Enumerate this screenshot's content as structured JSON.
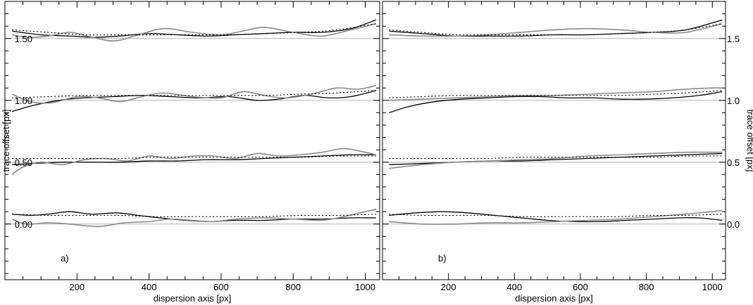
{
  "colors": {
    "black_curve": "#000000",
    "gray_curve": "#8a8a8a",
    "baseline": "#b4b4b4",
    "frame": "#000000"
  },
  "chart_data": [
    {
      "type": "line",
      "panel_label": "a)",
      "xlabel": "dispersion axis [px]",
      "ylabel": "trace offset [px]",
      "xlim": [
        0,
        1040
      ],
      "ylim": [
        -0.45,
        1.8
      ],
      "x_ticks": [
        200,
        400,
        600,
        800,
        1000
      ],
      "x_tick_labels": [
        "200",
        "400",
        "600",
        "800",
        "1000"
      ],
      "y_ticks": [
        0.0,
        0.5,
        1.0,
        1.5
      ],
      "y_tick_labels": [
        "0.00",
        "0.50",
        "1.00",
        "1.50"
      ],
      "y_axis_side": "left",
      "grid": false,
      "reference_lines": [
        0.0,
        0.5,
        1.0,
        1.5
      ],
      "series": [
        {
          "style": "black",
          "x": [
            20,
            100,
            180,
            250,
            320,
            400,
            480,
            560,
            640,
            720,
            800,
            880,
            960,
            1030
          ],
          "y": [
            1.56,
            1.53,
            1.52,
            1.51,
            1.52,
            1.54,
            1.53,
            1.52,
            1.53,
            1.54,
            1.55,
            1.55,
            1.58,
            1.65
          ]
        },
        {
          "style": "gray",
          "x": [
            20,
            60,
            120,
            180,
            230,
            300,
            360,
            440,
            520,
            600,
            660,
            720,
            800,
            880,
            960,
            1030
          ],
          "y": [
            1.53,
            1.51,
            1.52,
            1.55,
            1.52,
            1.48,
            1.52,
            1.58,
            1.55,
            1.53,
            1.56,
            1.59,
            1.55,
            1.52,
            1.57,
            1.62
          ]
        },
        {
          "style": "dotted",
          "x": [
            20,
            120,
            220,
            320,
            420,
            520,
            620,
            720,
            820,
            920,
            1030
          ],
          "y": [
            1.57,
            1.55,
            1.53,
            1.53,
            1.53,
            1.53,
            1.53,
            1.54,
            1.55,
            1.57,
            1.62
          ]
        },
        {
          "style": "black",
          "x": [
            20,
            80,
            150,
            220,
            300,
            380,
            460,
            540,
            620,
            700,
            760,
            830,
            900,
            960,
            1030
          ],
          "y": [
            0.91,
            0.96,
            1.0,
            1.02,
            1.03,
            1.04,
            1.03,
            1.02,
            1.03,
            1.0,
            1.01,
            1.04,
            1.02,
            1.03,
            1.08
          ]
        },
        {
          "style": "gray",
          "x": [
            20,
            70,
            130,
            200,
            260,
            320,
            380,
            440,
            520,
            600,
            660,
            720,
            780,
            850,
            920,
            980,
            1030
          ],
          "y": [
            1.05,
            0.99,
            0.98,
            1.03,
            1.02,
            0.99,
            1.03,
            1.06,
            1.03,
            1.02,
            1.07,
            1.04,
            1.02,
            1.05,
            1.1,
            1.09,
            1.12
          ]
        },
        {
          "style": "dotted",
          "x": [
            20,
            120,
            220,
            320,
            420,
            520,
            620,
            720,
            820,
            920,
            1030
          ],
          "y": [
            1.02,
            1.03,
            1.04,
            1.04,
            1.04,
            1.04,
            1.04,
            1.04,
            1.05,
            1.06,
            1.08
          ]
        },
        {
          "style": "black",
          "x": [
            20,
            80,
            160,
            240,
            320,
            400,
            480,
            560,
            640,
            720,
            800,
            880,
            960,
            1030
          ],
          "y": [
            0.48,
            0.49,
            0.5,
            0.5,
            0.5,
            0.51,
            0.51,
            0.52,
            0.52,
            0.53,
            0.54,
            0.55,
            0.56,
            0.56
          ]
        },
        {
          "style": "gray",
          "x": [
            20,
            50,
            100,
            160,
            220,
            280,
            340,
            400,
            460,
            520,
            580,
            640,
            700,
            760,
            820,
            880,
            940,
            1000,
            1030
          ],
          "y": [
            0.4,
            0.46,
            0.5,
            0.48,
            0.52,
            0.53,
            0.51,
            0.55,
            0.53,
            0.55,
            0.55,
            0.53,
            0.57,
            0.55,
            0.56,
            0.58,
            0.61,
            0.58,
            0.56
          ]
        },
        {
          "style": "dotted",
          "x": [
            20,
            120,
            220,
            320,
            420,
            520,
            620,
            720,
            820,
            920,
            1030
          ],
          "y": [
            0.53,
            0.53,
            0.53,
            0.53,
            0.54,
            0.54,
            0.54,
            0.54,
            0.54,
            0.55,
            0.55
          ]
        },
        {
          "style": "black",
          "x": [
            20,
            70,
            120,
            180,
            240,
            310,
            370,
            430,
            500,
            570,
            640,
            720,
            800,
            880,
            960,
            1030
          ],
          "y": [
            0.08,
            0.07,
            0.08,
            0.1,
            0.08,
            0.09,
            0.07,
            0.05,
            0.03,
            0.02,
            0.03,
            0.03,
            0.04,
            0.04,
            0.05,
            0.05
          ]
        },
        {
          "style": "gray",
          "x": [
            20,
            60,
            120,
            180,
            260,
            330,
            400,
            460,
            520,
            580,
            640,
            720,
            800,
            880,
            940,
            1000,
            1030
          ],
          "y": [
            0.04,
            0.0,
            0.01,
            0.0,
            -0.02,
            0.01,
            0.02,
            0.04,
            0.03,
            0.02,
            0.04,
            0.05,
            0.04,
            0.03,
            0.06,
            0.1,
            0.12
          ]
        },
        {
          "style": "dotted",
          "x": [
            20,
            120,
            220,
            320,
            420,
            520,
            620,
            720,
            820,
            920,
            1030
          ],
          "y": [
            0.08,
            0.07,
            0.07,
            0.07,
            0.06,
            0.06,
            0.06,
            0.06,
            0.07,
            0.07,
            0.08
          ]
        }
      ]
    },
    {
      "type": "line",
      "panel_label": "b)",
      "xlabel": "dispersion axis [px]",
      "ylabel": "trace offset [px]",
      "xlim": [
        0,
        1040
      ],
      "ylim": [
        -0.45,
        1.8
      ],
      "x_ticks": [
        200,
        400,
        600,
        800,
        1000
      ],
      "x_tick_labels": [
        "200",
        "400",
        "600",
        "800",
        "1000"
      ],
      "y_ticks": [
        0.0,
        0.5,
        1.0,
        1.5
      ],
      "y_tick_labels": [
        "0.0",
        "0.5",
        "1.0",
        "1.5"
      ],
      "y_axis_side": "right",
      "grid": false,
      "reference_lines": [
        0.0,
        0.5,
        1.0,
        1.5
      ],
      "series": [
        {
          "style": "black",
          "x": [
            20,
            120,
            220,
            320,
            420,
            520,
            620,
            720,
            820,
            920,
            1030
          ],
          "y": [
            1.56,
            1.54,
            1.52,
            1.52,
            1.52,
            1.53,
            1.53,
            1.54,
            1.55,
            1.57,
            1.65
          ]
        },
        {
          "style": "gray",
          "x": [
            20,
            120,
            220,
            320,
            420,
            520,
            620,
            720,
            820,
            920,
            1030
          ],
          "y": [
            1.53,
            1.52,
            1.52,
            1.53,
            1.55,
            1.57,
            1.58,
            1.57,
            1.55,
            1.55,
            1.62
          ]
        },
        {
          "style": "dotted",
          "x": [
            20,
            120,
            220,
            320,
            420,
            520,
            620,
            720,
            820,
            920,
            1030
          ],
          "y": [
            1.57,
            1.55,
            1.53,
            1.53,
            1.53,
            1.53,
            1.53,
            1.54,
            1.55,
            1.57,
            1.62
          ]
        },
        {
          "style": "black",
          "x": [
            20,
            80,
            160,
            240,
            320,
            400,
            480,
            560,
            640,
            720,
            800,
            880,
            960,
            1030
          ],
          "y": [
            0.9,
            0.95,
            0.99,
            1.01,
            1.02,
            1.03,
            1.03,
            1.02,
            1.02,
            1.01,
            1.01,
            1.02,
            1.04,
            1.07
          ]
        },
        {
          "style": "gray",
          "x": [
            20,
            120,
            220,
            320,
            420,
            520,
            620,
            720,
            820,
            920,
            1000,
            1030
          ],
          "y": [
            1.0,
            1.01,
            1.02,
            1.03,
            1.04,
            1.04,
            1.05,
            1.06,
            1.07,
            1.09,
            1.1,
            1.1
          ]
        },
        {
          "style": "dotted",
          "x": [
            20,
            120,
            220,
            320,
            420,
            520,
            620,
            720,
            820,
            920,
            1030
          ],
          "y": [
            1.02,
            1.03,
            1.04,
            1.04,
            1.04,
            1.04,
            1.04,
            1.04,
            1.05,
            1.06,
            1.08
          ]
        },
        {
          "style": "black",
          "x": [
            20,
            120,
            220,
            320,
            420,
            520,
            620,
            720,
            820,
            920,
            1030
          ],
          "y": [
            0.48,
            0.49,
            0.5,
            0.51,
            0.51,
            0.52,
            0.53,
            0.54,
            0.55,
            0.56,
            0.57
          ]
        },
        {
          "style": "gray",
          "x": [
            20,
            120,
            220,
            320,
            420,
            520,
            620,
            720,
            820,
            920,
            1030
          ],
          "y": [
            0.45,
            0.48,
            0.5,
            0.51,
            0.52,
            0.53,
            0.55,
            0.56,
            0.57,
            0.58,
            0.58
          ]
        },
        {
          "style": "dotted",
          "x": [
            20,
            120,
            220,
            320,
            420,
            520,
            620,
            720,
            820,
            920,
            1030
          ],
          "y": [
            0.53,
            0.53,
            0.53,
            0.53,
            0.54,
            0.54,
            0.54,
            0.54,
            0.54,
            0.55,
            0.55
          ]
        },
        {
          "style": "black",
          "x": [
            20,
            100,
            180,
            260,
            340,
            420,
            500,
            580,
            660,
            740,
            820,
            900,
            960,
            1030
          ],
          "y": [
            0.07,
            0.09,
            0.1,
            0.09,
            0.07,
            0.05,
            0.03,
            0.02,
            0.02,
            0.03,
            0.04,
            0.05,
            0.05,
            0.03
          ]
        },
        {
          "style": "gray",
          "x": [
            20,
            120,
            220,
            320,
            420,
            520,
            620,
            720,
            820,
            920,
            1030
          ],
          "y": [
            0.02,
            0.0,
            0.0,
            0.01,
            0.01,
            0.02,
            0.03,
            0.04,
            0.06,
            0.08,
            0.11
          ]
        },
        {
          "style": "dotted",
          "x": [
            20,
            120,
            220,
            320,
            420,
            520,
            620,
            720,
            820,
            920,
            1030
          ],
          "y": [
            0.08,
            0.07,
            0.07,
            0.07,
            0.06,
            0.06,
            0.06,
            0.06,
            0.07,
            0.07,
            0.08
          ]
        }
      ]
    }
  ]
}
